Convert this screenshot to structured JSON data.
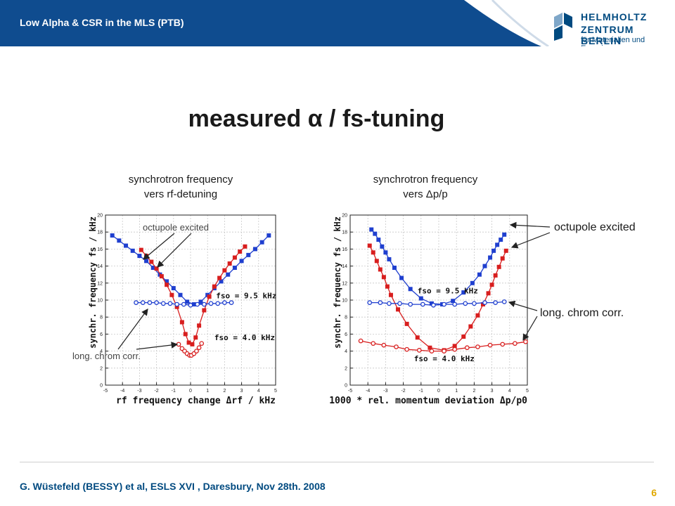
{
  "header": {
    "title": "Low Alpha & CSR in the MLS (PTB)"
  },
  "logo": {
    "line1": "HELMHOLTZ",
    "line2": "ZENTRUM BERLIN",
    "line3": "für Materialien und Energie"
  },
  "slide_title": "measured α / fs-tuning",
  "captions": {
    "left_line1": "synchrotron frequency",
    "left_line2": "vers rf-detuning",
    "right_line1": "synchrotron frequency",
    "right_line2": "vers Δp/p"
  },
  "annotations": {
    "left_octupole": "octupole   excited",
    "left_chrom": "long.  chrom  corr.",
    "right_octupole": "octupole  excited",
    "right_chrom": "long. chrom corr."
  },
  "footer": {
    "text": "G. Wüstefeld (BESSY) et al,  ESLS XVI  , Daresbury, Nov 28th. 2008",
    "page": "6"
  },
  "colors": {
    "header": "#0f4c8f",
    "blue": "#1f3fcf",
    "red": "#d81e1e",
    "footer_text": "#004a80",
    "page_num": "#e0a800"
  },
  "chart_data": [
    {
      "type": "scatter",
      "xlabel": "rf frequency change Δrf / kHz",
      "ylabel": "synchr. frequency fs / kHz",
      "xlim": [
        -5,
        5
      ],
      "ylim": [
        0,
        20
      ],
      "xticks": [
        -5,
        -4,
        -3,
        -2,
        -1,
        0,
        1,
        2,
        3,
        4,
        5
      ],
      "yticks": [
        0,
        2,
        4,
        6,
        8,
        10,
        12,
        14,
        16,
        18,
        20
      ],
      "grid": true,
      "labels": [
        {
          "text": "fso = 9.5 kHz",
          "x": 1.5,
          "y": 10.2
        },
        {
          "text": "fso = 4.0 kHz",
          "x": 1.4,
          "y": 5.3
        }
      ],
      "series": [
        {
          "marker": "square",
          "color": "#1f3fcf",
          "x": [
            -4.6,
            -4.2,
            -3.8,
            -3.4,
            -3.0,
            -2.6,
            -2.2,
            -1.8,
            -1.4,
            -1.0,
            -0.6,
            -0.2,
            0.2,
            0.6,
            1.0,
            1.4,
            1.8,
            2.2,
            2.6,
            3.0,
            3.4,
            3.8,
            4.2,
            4.6
          ],
          "y": [
            17.6,
            17.0,
            16.4,
            15.8,
            15.2,
            14.6,
            13.8,
            13.0,
            12.2,
            11.4,
            10.6,
            9.8,
            9.5,
            9.8,
            10.6,
            11.4,
            12.2,
            13.0,
            13.8,
            14.6,
            15.3,
            16.0,
            16.8,
            17.6
          ]
        },
        {
          "marker": "square",
          "color": "#d81e1e",
          "x": [
            -2.9,
            -2.6,
            -2.3,
            -2.0,
            -1.7,
            -1.4,
            -1.1,
            -0.8,
            -0.5,
            -0.3,
            -0.1,
            0.1,
            0.3,
            0.5,
            0.8,
            1.1,
            1.4,
            1.7,
            2.0,
            2.3,
            2.6,
            2.9,
            3.2
          ],
          "y": [
            15.9,
            15.2,
            14.5,
            13.7,
            12.8,
            11.8,
            10.6,
            9.2,
            7.4,
            6.0,
            5.0,
            4.8,
            5.6,
            7.0,
            8.8,
            10.4,
            11.6,
            12.6,
            13.5,
            14.3,
            15.0,
            15.7,
            16.3
          ]
        },
        {
          "marker": "circle",
          "color": "#1f3fcf",
          "x": [
            -3.2,
            -2.8,
            -2.4,
            -2.0,
            -1.6,
            -1.2,
            -0.8,
            -0.4,
            0.0,
            0.4,
            0.8,
            1.2,
            1.6,
            2.0,
            2.4
          ],
          "y": [
            9.7,
            9.7,
            9.7,
            9.7,
            9.6,
            9.6,
            9.5,
            9.5,
            9.4,
            9.5,
            9.5,
            9.6,
            9.6,
            9.7,
            9.7
          ]
        },
        {
          "marker": "circle",
          "color": "#d81e1e",
          "x": [
            -0.7,
            -0.5,
            -0.35,
            -0.2,
            -0.05,
            0.05,
            0.2,
            0.35,
            0.5,
            0.65
          ],
          "y": [
            4.8,
            4.3,
            4.0,
            3.7,
            3.5,
            3.5,
            3.7,
            4.0,
            4.4,
            4.9
          ]
        }
      ]
    },
    {
      "type": "scatter",
      "xlabel": "1000 * rel. momentum deviation Δp/p0",
      "ylabel": "synchr. frequency fs / kHz",
      "xlim": [
        -5,
        5
      ],
      "ylim": [
        0,
        20
      ],
      "xticks": [
        -5,
        -4,
        -3,
        -2,
        -1,
        0,
        1,
        2,
        3,
        4,
        5
      ],
      "yticks": [
        0,
        2,
        4,
        6,
        8,
        10,
        12,
        14,
        16,
        18,
        20
      ],
      "grid": true,
      "labels": [
        {
          "text": "fso = 9.5 kHz",
          "x": -1.2,
          "y": 10.8
        },
        {
          "text": "fso = 4.0 kHz",
          "x": -1.4,
          "y": 2.8
        }
      ],
      "series": [
        {
          "marker": "square",
          "color": "#1f3fcf",
          "x": [
            -3.8,
            -3.6,
            -3.4,
            -3.2,
            -3.0,
            -2.8,
            -2.5,
            -2.1,
            -1.6,
            -1.0,
            -0.4,
            0.2,
            0.8,
            1.4,
            1.9,
            2.3,
            2.6,
            2.9,
            3.1,
            3.3,
            3.5,
            3.7
          ],
          "y": [
            18.3,
            17.8,
            17.1,
            16.3,
            15.6,
            14.8,
            13.8,
            12.6,
            11.3,
            10.2,
            9.6,
            9.5,
            9.9,
            10.9,
            12.0,
            13.0,
            14.0,
            15.0,
            15.8,
            16.5,
            17.1,
            17.7
          ]
        },
        {
          "marker": "square",
          "color": "#d81e1e",
          "x": [
            -3.9,
            -3.7,
            -3.5,
            -3.3,
            -3.1,
            -2.9,
            -2.7,
            -2.3,
            -1.8,
            -1.2,
            -0.5,
            0.3,
            0.9,
            1.4,
            1.8,
            2.2,
            2.5,
            2.8,
            3.0,
            3.2,
            3.4,
            3.6,
            3.8
          ],
          "y": [
            16.4,
            15.6,
            14.6,
            13.6,
            12.7,
            11.6,
            10.6,
            8.9,
            7.2,
            5.6,
            4.4,
            4.1,
            4.6,
            5.7,
            6.9,
            8.2,
            9.5,
            10.8,
            11.8,
            12.9,
            13.9,
            14.9,
            15.8
          ]
        },
        {
          "marker": "circle",
          "color": "#1f3fcf",
          "x": [
            -3.9,
            -3.3,
            -2.8,
            -2.2,
            -1.6,
            -0.9,
            -0.3,
            0.3,
            0.9,
            1.5,
            2.0,
            2.6,
            3.2,
            3.7
          ],
          "y": [
            9.7,
            9.7,
            9.6,
            9.6,
            9.5,
            9.5,
            9.4,
            9.5,
            9.5,
            9.6,
            9.6,
            9.7,
            9.7,
            9.8
          ]
        },
        {
          "marker": "circle",
          "color": "#d81e1e",
          "x": [
            -4.4,
            -3.7,
            -3.1,
            -2.4,
            -1.8,
            -1.1,
            -0.4,
            0.3,
            0.9,
            1.6,
            2.2,
            2.9,
            3.6,
            4.3,
            4.9
          ],
          "y": [
            5.2,
            4.9,
            4.7,
            4.5,
            4.2,
            4.1,
            4.0,
            4.0,
            4.2,
            4.4,
            4.5,
            4.7,
            4.8,
            4.9,
            5.1
          ]
        }
      ]
    }
  ]
}
